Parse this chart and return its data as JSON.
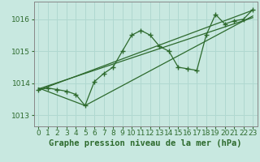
{
  "bg_color": "#c8e8e0",
  "grid_color": "#b0d8d0",
  "line_color": "#2d6a2d",
  "xlabel": "Graphe pression niveau de la mer (hPa)",
  "xlabel_fontsize": 7.5,
  "tick_fontsize": 6.5,
  "xlim": [
    -0.5,
    23.5
  ],
  "ylim": [
    1012.65,
    1016.55
  ],
  "yticks": [
    1013,
    1014,
    1015,
    1016
  ],
  "xticks": [
    0,
    1,
    2,
    3,
    4,
    5,
    6,
    7,
    8,
    9,
    10,
    11,
    12,
    13,
    14,
    15,
    16,
    17,
    18,
    19,
    20,
    21,
    22,
    23
  ],
  "series": {
    "main": {
      "x": [
        0,
        1,
        2,
        3,
        4,
        5,
        6,
        7,
        8,
        9,
        10,
        11,
        12,
        13,
        14,
        15,
        16,
        17,
        18,
        19,
        20,
        21,
        22,
        23
      ],
      "y": [
        1013.8,
        1013.85,
        1013.8,
        1013.75,
        1013.65,
        1013.3,
        1014.05,
        1014.3,
        1014.5,
        1015.0,
        1015.5,
        1015.65,
        1015.5,
        1015.15,
        1015.0,
        1014.5,
        1014.45,
        1014.4,
        1015.5,
        1016.15,
        1015.85,
        1015.95,
        1016.0,
        1016.3
      ]
    },
    "line1": {
      "x": [
        0,
        23
      ],
      "y": [
        1013.78,
        1016.28
      ]
    },
    "line2": {
      "x": [
        0,
        5,
        23
      ],
      "y": [
        1013.85,
        1013.3,
        1016.1
      ]
    },
    "line3": {
      "x": [
        0,
        23
      ],
      "y": [
        1013.82,
        1016.05
      ]
    }
  }
}
